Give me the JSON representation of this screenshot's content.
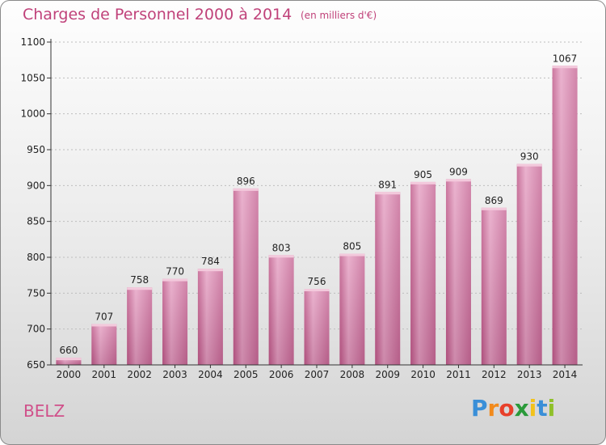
{
  "chart_data": {
    "type": "bar",
    "title": "Charges de Personnel 2000 à 2014",
    "subtitle": "(en milliers d'€)",
    "categories": [
      "2000",
      "2001",
      "2002",
      "2003",
      "2004",
      "2005",
      "2006",
      "2007",
      "2008",
      "2009",
      "2010",
      "2011",
      "2012",
      "2013",
      "2014"
    ],
    "values": [
      660,
      707,
      758,
      770,
      784,
      896,
      803,
      756,
      805,
      891,
      905,
      909,
      869,
      930,
      1067
    ],
    "data_labels": [
      "660",
      "707",
      "758",
      "770",
      "784",
      "896",
      "803",
      "756",
      "805",
      "891",
      "905",
      "909",
      "869",
      "930",
      "1067"
    ],
    "ylim": [
      650,
      1100
    ],
    "yticks": [
      650,
      700,
      750,
      800,
      850,
      900,
      950,
      1000,
      1050,
      1100
    ],
    "grid": true,
    "bar_color": "#d8719f"
  },
  "commune": "BELZ",
  "logo": {
    "letters": [
      "P",
      "r",
      "o",
      "x",
      "i",
      "t",
      "i"
    ],
    "colors": [
      "#3a8fd8",
      "#f28a1c",
      "#e8402a",
      "#2a9a3a",
      "#f2c21c",
      "#3a8fd8",
      "#8fc02a"
    ]
  }
}
